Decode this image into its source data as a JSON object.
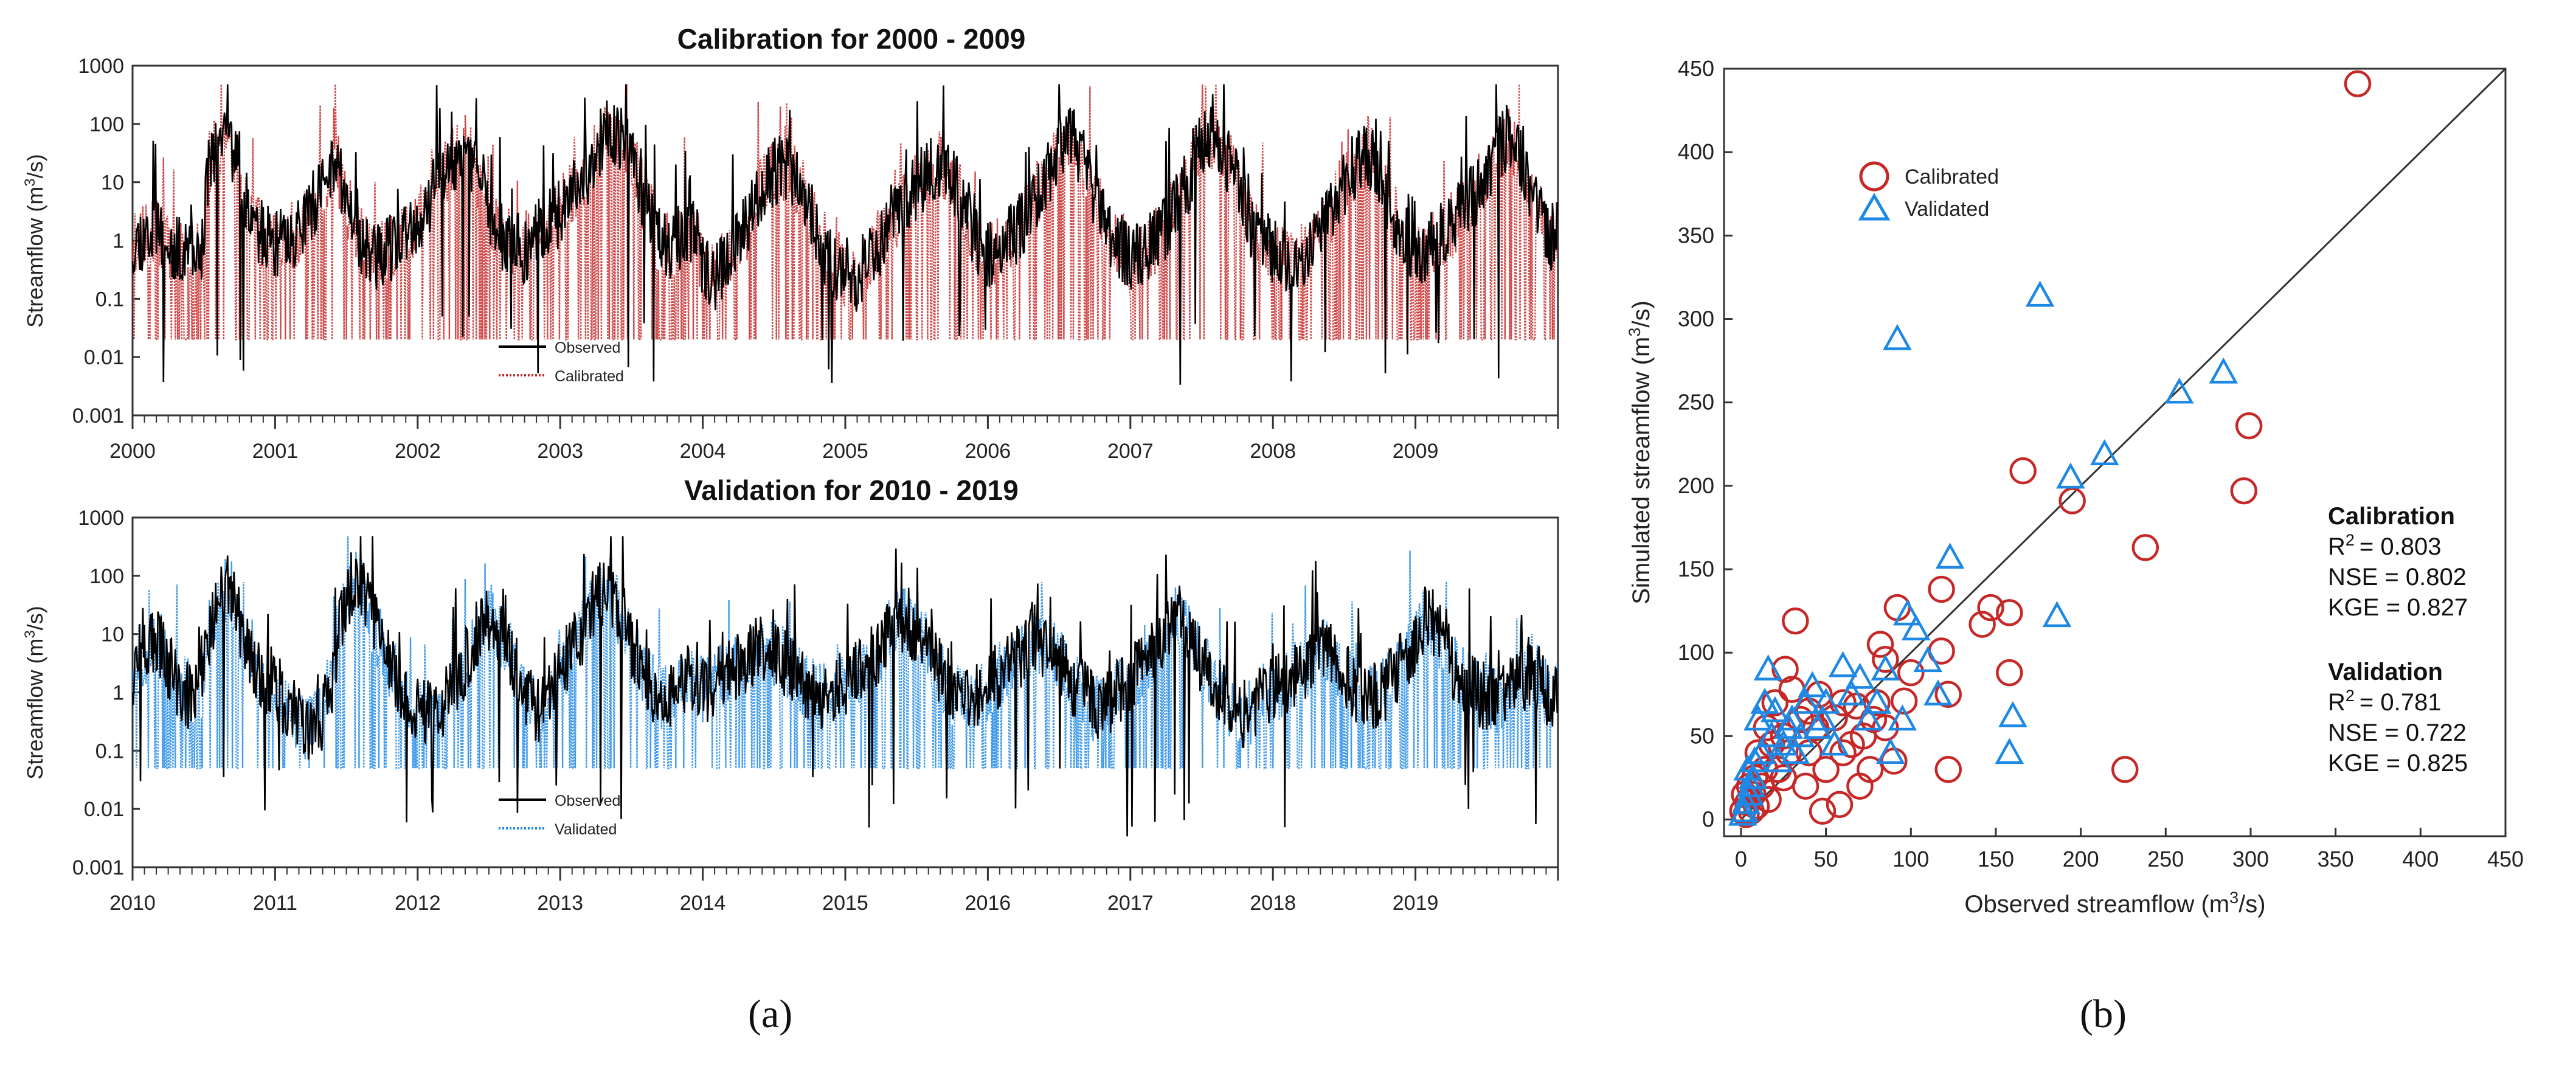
{
  "figure": {
    "subfigure_labels": [
      "(a)",
      "(b)"
    ]
  },
  "chart_data": [
    {
      "type": "line",
      "id": "calibration",
      "title": "Calibration for 2000 - 2009",
      "ylabel": "Streamflow (m3/s)",
      "xlabel": "",
      "yscale": "log",
      "ylim": [
        0.001,
        1000
      ],
      "y_ticks": [
        0.001,
        0.01,
        0.1,
        1,
        10,
        100,
        1000
      ],
      "y_tick_labels": [
        "0.001",
        "0.01",
        "0.1",
        "1",
        "10",
        "100",
        "1000"
      ],
      "xlim": [
        2000,
        2010
      ],
      "x_tick_labels": [
        "2000",
        "2001",
        "2002",
        "2003",
        "2004",
        "2005",
        "2006",
        "2007",
        "2008",
        "2009"
      ],
      "legend": {
        "placement": "lower-left",
        "entries": [
          "Observed",
          "Calibrated"
        ]
      },
      "series": [
        {
          "name": "Observed",
          "color": "#000000",
          "style": "solid",
          "floor": 0.05,
          "seed": 11
        },
        {
          "name": "Calibrated",
          "color": "#c62828",
          "style": "dotted",
          "floor": 0.02,
          "seed": 23
        }
      ],
      "approx_monthly_values": [
        0.9,
        1.2,
        1.5,
        0.8,
        0.6,
        0.5,
        0.7,
        40,
        60,
        8,
        2,
        1.2,
        0.8,
        1.0,
        1.5,
        3,
        8,
        20,
        4,
        1.2,
        0.6,
        0.5,
        0.8,
        1.0,
        2,
        5,
        12,
        25,
        40,
        15,
        3,
        1.2,
        0.8,
        0.7,
        1.2,
        2,
        3,
        6,
        10,
        30,
        80,
        60,
        20,
        5,
        1.2,
        0.8,
        1.0,
        1.5,
        0.3,
        0.2,
        0.5,
        1.0,
        2,
        8,
        15,
        20,
        10,
        3,
        0.5,
        0.4,
        0.3,
        0.2,
        0.5,
        1.0,
        2,
        4,
        8,
        15,
        20,
        10,
        3,
        1.0,
        0.5,
        0.8,
        1.2,
        2,
        5,
        12,
        30,
        60,
        20,
        5,
        1.5,
        0.8,
        0.4,
        0.6,
        0.9,
        1.5,
        4,
        12,
        40,
        70,
        30,
        8,
        2,
        1.0,
        0.6,
        0.5,
        0.4,
        0.8,
        1.5,
        3,
        8,
        20,
        30,
        10,
        3,
        1.2,
        0.5,
        0.7,
        1.0,
        1.8,
        3,
        6,
        12,
        40,
        50,
        15,
        4,
        1.2
      ]
    },
    {
      "type": "line",
      "id": "validation",
      "title": "Validation for 2010 - 2019",
      "ylabel": "Streamflow (m3/s)",
      "xlabel": "",
      "yscale": "log",
      "ylim": [
        0.001,
        1000
      ],
      "y_ticks": [
        0.001,
        0.01,
        0.1,
        1,
        10,
        100,
        1000
      ],
      "y_tick_labels": [
        "0.001",
        "0.01",
        "0.1",
        "1",
        "10",
        "100",
        "1000"
      ],
      "xlim": [
        2010,
        2020
      ],
      "x_tick_labels": [
        "2010",
        "2011",
        "2012",
        "2013",
        "2014",
        "2015",
        "2016",
        "2017",
        "2018",
        "2019"
      ],
      "legend": {
        "placement": "lower-left",
        "entries": [
          "Observed",
          "Validated"
        ]
      },
      "series": [
        {
          "name": "Observed",
          "color": "#000000",
          "style": "solid",
          "floor": 0.05,
          "seed": 37
        },
        {
          "name": "Validated",
          "color": "#1e88e5",
          "style": "dotted",
          "floor": 0.05,
          "seed": 51
        }
      ],
      "approx_monthly_values": [
        2,
        5,
        8,
        3,
        1.0,
        0.8,
        1.5,
        20,
        60,
        15,
        4,
        1.5,
        1.0,
        0.6,
        0.3,
        0.2,
        0.4,
        2,
        30,
        80,
        20,
        5,
        2,
        0.8,
        0.5,
        0.4,
        0.6,
        1.2,
        3,
        8,
        20,
        10,
        3,
        1.0,
        0.4,
        0.8,
        2,
        5,
        12,
        40,
        60,
        20,
        5,
        2,
        1.0,
        0.8,
        1.2,
        2,
        1.0,
        1.5,
        2,
        3,
        4,
        6,
        5,
        3,
        2,
        1.0,
        0.8,
        1.0,
        1.5,
        2,
        3,
        6,
        12,
        20,
        10,
        5,
        2,
        1.0,
        0.6,
        0.8,
        1.2,
        2,
        3,
        5,
        8,
        6,
        3,
        1.5,
        1.0,
        0.5,
        0.6,
        1.0,
        1.5,
        3,
        6,
        12,
        20,
        8,
        3,
        1.2,
        0.8,
        0.5,
        0.4,
        0.8,
        1.0,
        1.5,
        2,
        3,
        5,
        4,
        2,
        1.0,
        0.8,
        1.0,
        1.5,
        3,
        8,
        20,
        10,
        3,
        1.5,
        1.0,
        0.8,
        0.7,
        1.0,
        1.5,
        2,
        1.0
      ]
    },
    {
      "type": "scatter",
      "id": "scatter",
      "title": "",
      "xlabel": "Observed streamflow (m3/s)",
      "ylabel": "Simulated streamflow (m3/s)",
      "xlim": [
        0,
        450
      ],
      "ylim": [
        0,
        450
      ],
      "x_ticks": [
        0,
        50,
        100,
        150,
        200,
        250,
        300,
        350,
        400,
        450
      ],
      "y_ticks": [
        0,
        50,
        100,
        150,
        200,
        250,
        300,
        350,
        400,
        450
      ],
      "legend": {
        "placement": "top-left",
        "entries": [
          "Calibrated",
          "Validated"
        ]
      },
      "reference_line": "1:1",
      "series": [
        {
          "name": "Calibrated",
          "marker": "circle",
          "color": "#c62828",
          "points": [
            [
              363,
              441
            ],
            [
              299,
              236
            ],
            [
              296,
              197
            ],
            [
              238,
              163
            ],
            [
              226,
              30
            ],
            [
              195,
              191
            ],
            [
              166,
              209
            ],
            [
              158,
              124
            ],
            [
              158,
              88
            ],
            [
              147,
              127
            ],
            [
              142,
              117
            ],
            [
              122,
              75
            ],
            [
              122,
              30
            ],
            [
              118,
              138
            ],
            [
              118,
              101
            ],
            [
              100,
              88
            ],
            [
              96,
              71
            ],
            [
              92,
              127
            ],
            [
              90,
              35
            ],
            [
              85,
              96
            ],
            [
              82,
              105
            ],
            [
              80,
              70
            ],
            [
              78,
              60
            ],
            [
              76,
              30
            ],
            [
              72,
              50
            ],
            [
              68,
              68
            ],
            [
              65,
              45
            ],
            [
              60,
              70
            ],
            [
              58,
              9
            ],
            [
              55,
              61
            ],
            [
              50,
              30
            ],
            [
              48,
              5
            ],
            [
              46,
              75
            ],
            [
              44,
              55
            ],
            [
              40,
              40
            ],
            [
              38,
              20
            ],
            [
              35,
              60
            ],
            [
              32,
              119
            ],
            [
              30,
              78
            ],
            [
              28,
              40
            ],
            [
              26,
              90
            ],
            [
              25,
              50
            ],
            [
              22,
              30
            ],
            [
              20,
              70
            ],
            [
              18,
              45
            ],
            [
              16,
              12
            ],
            [
              15,
              55
            ],
            [
              14,
              30
            ],
            [
              12,
              20
            ],
            [
              10,
              40
            ],
            [
              9,
              8
            ],
            [
              8,
              25
            ],
            [
              7,
              15
            ],
            [
              6,
              5
            ],
            [
              5,
              20
            ],
            [
              4,
              10
            ],
            [
              3,
              3
            ],
            [
              2,
              15
            ],
            [
              1,
              5
            ],
            [
              60,
              40
            ],
            [
              70,
              20
            ],
            [
              85,
              55
            ],
            [
              40,
              65
            ],
            [
              25,
              25
            ]
          ]
        },
        {
          "name": "Validated",
          "marker": "triangle",
          "color": "#1e88e5",
          "points": [
            [
              176,
              314
            ],
            [
              92,
              288
            ],
            [
              284,
              268
            ],
            [
              258,
              256
            ],
            [
              214,
              219
            ],
            [
              194,
              205
            ],
            [
              123,
              157
            ],
            [
              186,
              122
            ],
            [
              160,
              62
            ],
            [
              158,
              40
            ],
            [
              116,
              75
            ],
            [
              103,
              114
            ],
            [
              98,
              123
            ],
            [
              85,
              90
            ],
            [
              80,
              70
            ],
            [
              75,
              60
            ],
            [
              70,
              85
            ],
            [
              65,
              75
            ],
            [
              60,
              92
            ],
            [
              55,
              45
            ],
            [
              50,
              70
            ],
            [
              48,
              60
            ],
            [
              45,
              55
            ],
            [
              42,
              80
            ],
            [
              38,
              70
            ],
            [
              35,
              50
            ],
            [
              32,
              40
            ],
            [
              30,
              60
            ],
            [
              28,
              55
            ],
            [
              25,
              45
            ],
            [
              22,
              35
            ],
            [
              20,
              65
            ],
            [
              18,
              50
            ],
            [
              16,
              90
            ],
            [
              14,
              70
            ],
            [
              12,
              40
            ],
            [
              10,
              60
            ],
            [
              8,
              35
            ],
            [
              7,
              25
            ],
            [
              6,
              20
            ],
            [
              5,
              15
            ],
            [
              4,
              30
            ],
            [
              3,
              10
            ],
            [
              2,
              5
            ],
            [
              1,
              3
            ],
            [
              95,
              60
            ],
            [
              110,
              95
            ],
            [
              88,
              40
            ]
          ]
        }
      ],
      "stats": {
        "calibration": {
          "heading": "Calibration",
          "r2_label": "R",
          "r2_sup": "2",
          "r2_value": "= 0.803",
          "nse": "NSE = 0.802",
          "kge": "KGE = 0.827"
        },
        "validation": {
          "heading": "Validation",
          "r2_label": "R",
          "r2_sup": "2",
          "r2_value": "= 0.781",
          "nse": "NSE = 0.722",
          "kge": "KGE = 0.825"
        }
      }
    }
  ]
}
